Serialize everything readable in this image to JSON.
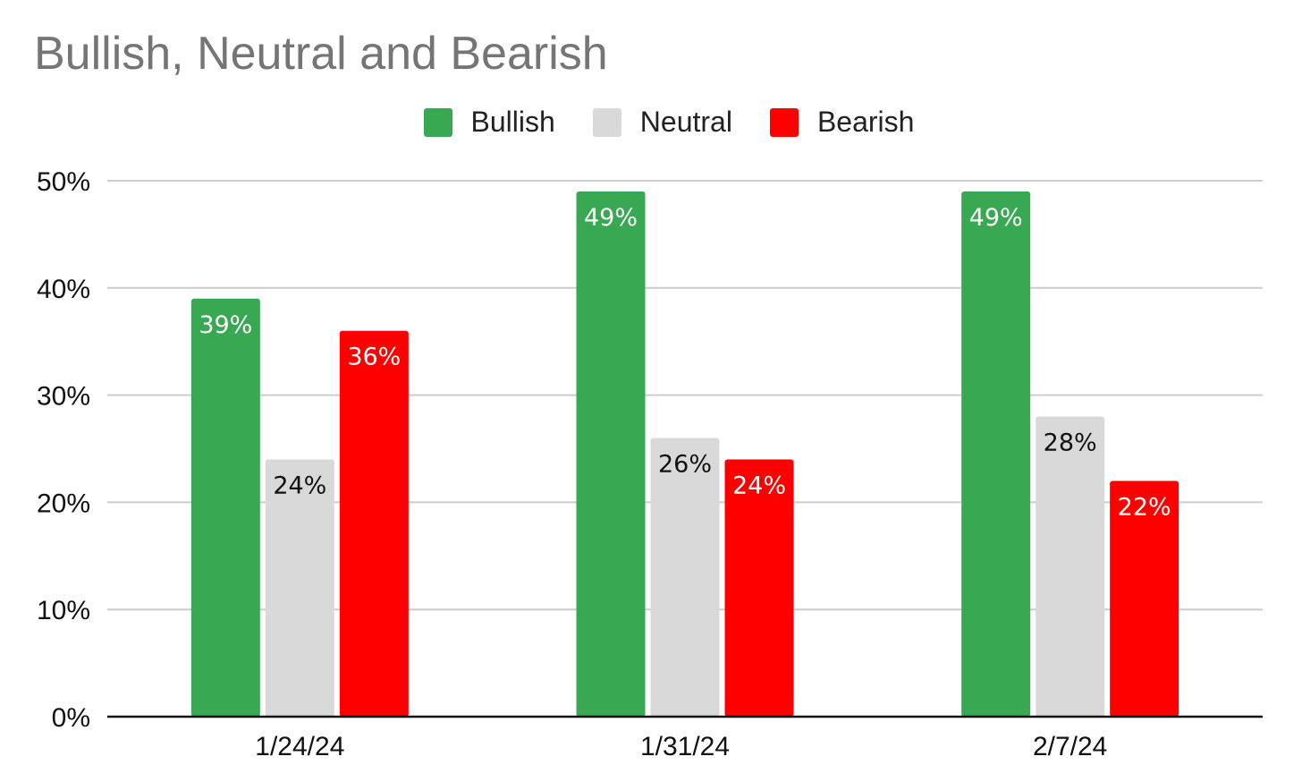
{
  "chart_data": {
    "type": "bar",
    "title": "Bullish, Neutral and Bearish",
    "xlabel": "",
    "ylabel": "",
    "categories": [
      "1/24/24",
      "1/31/24",
      "2/7/24"
    ],
    "series": [
      {
        "name": "Bullish",
        "color": "#38a853",
        "label_color": "#ffffff",
        "values": [
          39,
          49,
          49
        ],
        "labels": [
          "39%",
          "49%",
          "49%"
        ]
      },
      {
        "name": "Neutral",
        "color": "#d9d9d9",
        "label_color": "#111111",
        "values": [
          24,
          26,
          28
        ],
        "labels": [
          "24%",
          "26%",
          "28%"
        ]
      },
      {
        "name": "Bearish",
        "color": "#ff0000",
        "label_color": "#ffffff",
        "values": [
          36,
          24,
          22
        ],
        "labels": [
          "36%",
          "24%",
          "22%"
        ]
      }
    ],
    "ylim": [
      0,
      50
    ],
    "yticks": [
      0,
      10,
      20,
      30,
      40,
      50
    ],
    "ytick_labels": [
      "0%",
      "10%",
      "20%",
      "30%",
      "40%",
      "50%"
    ],
    "grid": true,
    "legend_position": "top-center"
  }
}
